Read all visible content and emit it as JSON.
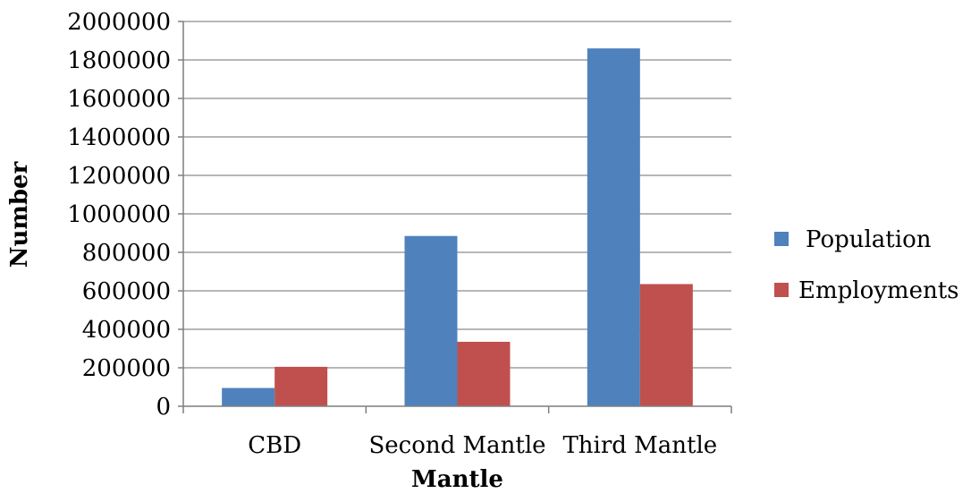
{
  "chart_data": {
    "type": "bar",
    "title": "",
    "xlabel": "Mantle",
    "ylabel": "Number",
    "categories": [
      "CBD",
      "Second Mantle",
      "Third Mantle"
    ],
    "series": [
      {
        "name": "Population",
        "color": "#4F81BD",
        "values": [
          95000,
          885000,
          1860000
        ]
      },
      {
        "name": "Employments",
        "color": "#C0504D",
        "values": [
          205000,
          335000,
          635000
        ]
      }
    ],
    "ylim": [
      0,
      2000000
    ],
    "yticks": [
      "0",
      "200000",
      "400000",
      "600000",
      "800000",
      "1000000",
      "1200000",
      "1400000",
      "1600000",
      "1800000",
      "2000000"
    ],
    "grid": true,
    "legend": "right"
  }
}
